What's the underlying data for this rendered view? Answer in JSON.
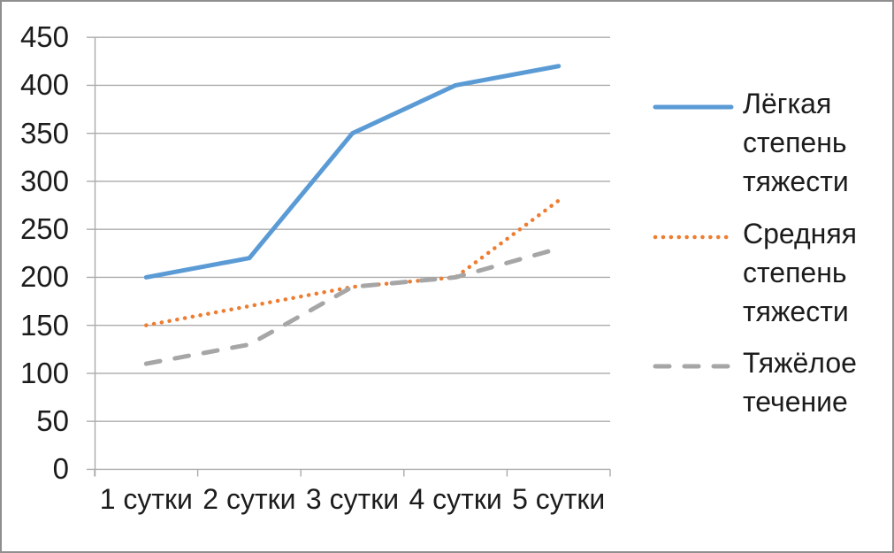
{
  "chart_data": {
    "type": "line",
    "title": "",
    "xlabel": "",
    "ylabel": "",
    "categories": [
      "1 сутки",
      "2 сутки",
      "3 сутки",
      "4 сутки",
      "5 сутки"
    ],
    "series": [
      {
        "name": "Лёгкая степень тяжести",
        "values": [
          200,
          220,
          350,
          400,
          420
        ],
        "color": "#5B9BD5",
        "line_style": "solid"
      },
      {
        "name": "Средняя степень тяжести",
        "values": [
          150,
          170,
          190,
          200,
          280
        ],
        "color": "#ED7D31",
        "line_style": "dotted"
      },
      {
        "name": "Тяжёлое течение",
        "values": [
          110,
          130,
          190,
          200,
          230
        ],
        "color": "#A6A6A6",
        "line_style": "dashed"
      }
    ],
    "ylim": [
      0,
      450
    ],
    "ytick_step": 50,
    "yticks": [
      0,
      50,
      100,
      150,
      200,
      250,
      300,
      350,
      400,
      450
    ],
    "grid": true,
    "legend_position": "right"
  },
  "colors": {
    "gridline": "#ABABAB",
    "axis": "#ABABAB",
    "text": "#1c1c1c",
    "background": "#FFFFFF",
    "border": "#8f8f8f"
  }
}
